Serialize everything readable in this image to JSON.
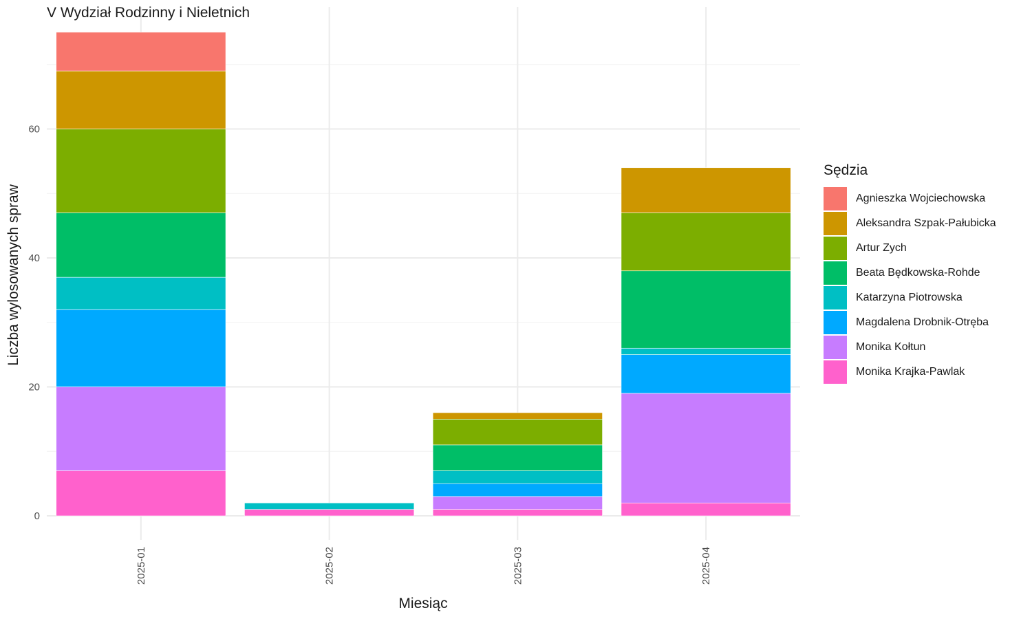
{
  "chart_data": {
    "type": "bar",
    "stacked": true,
    "title": "V Wydział Rodzinny i Nieletnich",
    "xlabel": "Miesiąc",
    "ylabel": "Liczba wylosowanych spraw",
    "legend_title": "Sędzia",
    "legend_position": "right",
    "grid": true,
    "ylim": [
      0,
      75
    ],
    "yticks": [
      0,
      20,
      40,
      60
    ],
    "categories": [
      "2025-01",
      "2025-02",
      "2025-03",
      "2025-04"
    ],
    "series": [
      {
        "name": "Monika Krajka-Pawlak",
        "color": "#FF61CC",
        "values": [
          7,
          1,
          1,
          2
        ]
      },
      {
        "name": "Monika Kołtun",
        "color": "#C77CFF",
        "values": [
          13,
          0,
          2,
          17
        ]
      },
      {
        "name": "Magdalena Drobnik-Otręba",
        "color": "#00A9FF",
        "values": [
          12,
          0,
          2,
          6
        ]
      },
      {
        "name": "Katarzyna Piotrowska",
        "color": "#00BFC4",
        "values": [
          5,
          1,
          2,
          1
        ]
      },
      {
        "name": "Beata Będkowska-Rohde",
        "color": "#00BE67",
        "values": [
          10,
          0,
          4,
          12
        ]
      },
      {
        "name": "Artur Zych",
        "color": "#7CAE00",
        "values": [
          13,
          0,
          4,
          9
        ]
      },
      {
        "name": "Aleksandra Szpak-Pałubicka",
        "color": "#CD9600",
        "values": [
          9,
          0,
          1,
          7
        ]
      },
      {
        "name": "Agnieszka Wojciechowska",
        "color": "#F8766D",
        "values": [
          6,
          0,
          0,
          0
        ]
      }
    ],
    "legend_order": [
      "Agnieszka Wojciechowska",
      "Aleksandra Szpak-Pałubicka",
      "Artur Zych",
      "Beata Będkowska-Rohde",
      "Katarzyna Piotrowska",
      "Magdalena Drobnik-Otręba",
      "Monika Kołtun",
      "Monika Krajka-Pawlak"
    ]
  }
}
